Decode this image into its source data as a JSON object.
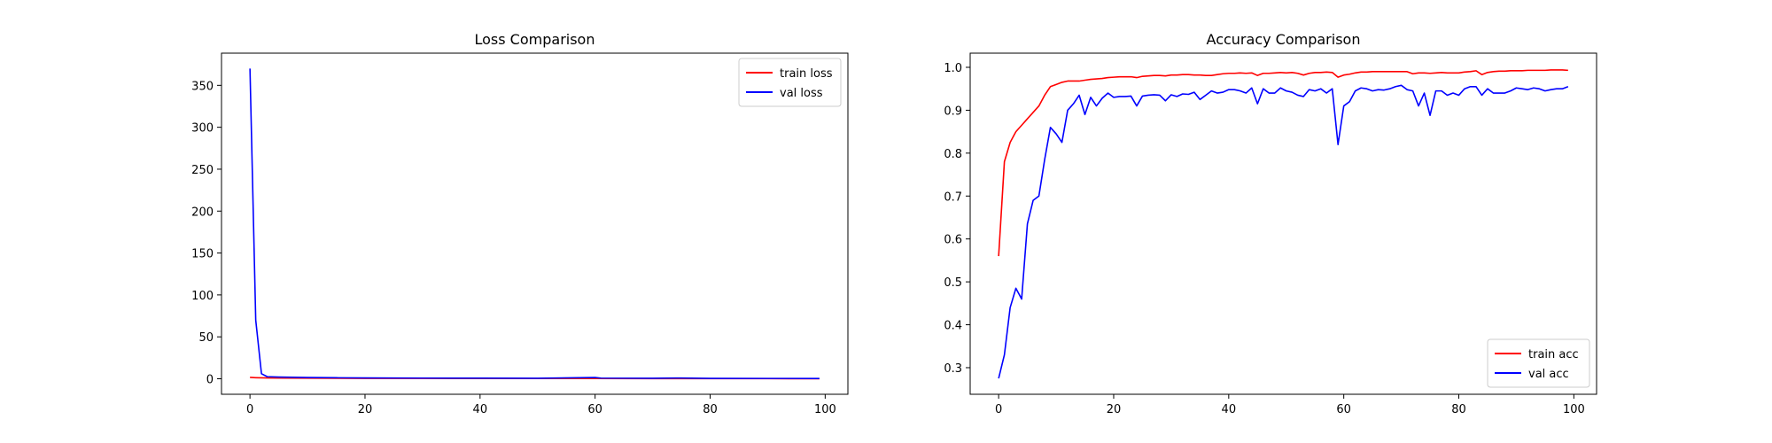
{
  "chart_data": [
    {
      "type": "line",
      "title": "Loss Comparison",
      "xlabel": "",
      "ylabel": "",
      "xlim": [
        -4.95,
        103.95
      ],
      "ylim": [
        -18.5,
        388.4
      ],
      "xticks": [
        0,
        20,
        40,
        60,
        80,
        100
      ],
      "yticks": [
        0,
        50,
        100,
        150,
        200,
        250,
        300,
        350
      ],
      "grid": false,
      "legend_position": "top-right",
      "series": [
        {
          "name": "train loss",
          "color": "#ff0000",
          "x": [
            0,
            1,
            2,
            3,
            5,
            10,
            20,
            30,
            40,
            50,
            60,
            70,
            80,
            90,
            99
          ],
          "y": [
            1.6,
            1.3,
            1.1,
            1.0,
            0.9,
            0.7,
            0.5,
            0.4,
            0.3,
            0.25,
            0.25,
            0.2,
            0.15,
            0.12,
            0.1
          ]
        },
        {
          "name": "val loss",
          "color": "#0000ff",
          "x": [
            0,
            1,
            2,
            3,
            5,
            10,
            15,
            20,
            30,
            40,
            50,
            60,
            61,
            70,
            75,
            80,
            90,
            99
          ],
          "y": [
            370,
            70,
            6,
            2.5,
            2.0,
            1.5,
            1.2,
            1.0,
            0.8,
            0.7,
            0.6,
            1.5,
            0.8,
            0.6,
            0.9,
            0.5,
            0.4,
            0.35
          ]
        }
      ]
    },
    {
      "type": "line",
      "title": "Accuracy Comparison",
      "xlabel": "",
      "ylabel": "",
      "xlim": [
        -4.95,
        103.95
      ],
      "ylim": [
        0.238,
        1.033
      ],
      "xticks": [
        0,
        20,
        40,
        60,
        80,
        100
      ],
      "yticks": [
        0.3,
        0.4,
        0.5,
        0.6,
        0.7,
        0.8,
        0.9,
        1.0
      ],
      "grid": false,
      "legend_position": "lower-right",
      "series": [
        {
          "name": "train acc",
          "color": "#ff0000",
          "x": [
            0,
            1,
            2,
            3,
            4,
            5,
            6,
            7,
            8,
            9,
            10,
            11,
            12,
            13,
            14,
            15,
            16,
            17,
            18,
            19,
            20,
            21,
            22,
            23,
            24,
            25,
            26,
            27,
            28,
            29,
            30,
            31,
            32,
            33,
            34,
            35,
            36,
            37,
            38,
            39,
            40,
            41,
            42,
            43,
            44,
            45,
            46,
            47,
            48,
            49,
            50,
            51,
            52,
            53,
            54,
            55,
            56,
            57,
            58,
            59,
            60,
            61,
            62,
            63,
            64,
            65,
            66,
            67,
            68,
            69,
            70,
            71,
            72,
            73,
            74,
            75,
            76,
            77,
            78,
            79,
            80,
            81,
            82,
            83,
            84,
            85,
            86,
            87,
            88,
            89,
            90,
            91,
            92,
            93,
            94,
            95,
            96,
            97,
            98,
            99
          ],
          "y": [
            0.56,
            0.78,
            0.825,
            0.85,
            0.865,
            0.88,
            0.895,
            0.91,
            0.935,
            0.955,
            0.96,
            0.965,
            0.968,
            0.968,
            0.968,
            0.97,
            0.972,
            0.973,
            0.974,
            0.976,
            0.977,
            0.978,
            0.978,
            0.978,
            0.976,
            0.979,
            0.98,
            0.981,
            0.981,
            0.98,
            0.982,
            0.982,
            0.983,
            0.983,
            0.982,
            0.982,
            0.981,
            0.981,
            0.983,
            0.985,
            0.986,
            0.986,
            0.987,
            0.986,
            0.987,
            0.981,
            0.986,
            0.986,
            0.987,
            0.988,
            0.987,
            0.988,
            0.986,
            0.982,
            0.986,
            0.988,
            0.988,
            0.989,
            0.988,
            0.977,
            0.982,
            0.984,
            0.987,
            0.989,
            0.989,
            0.99,
            0.99,
            0.99,
            0.99,
            0.99,
            0.99,
            0.99,
            0.985,
            0.987,
            0.987,
            0.986,
            0.987,
            0.988,
            0.987,
            0.987,
            0.987,
            0.989,
            0.99,
            0.992,
            0.983,
            0.988,
            0.99,
            0.991,
            0.991,
            0.992,
            0.992,
            0.992,
            0.993,
            0.993,
            0.993,
            0.993,
            0.994,
            0.994,
            0.994,
            0.993
          ]
        },
        {
          "name": "val acc",
          "color": "#0000ff",
          "x": [
            0,
            1,
            2,
            3,
            4,
            5,
            6,
            7,
            8,
            9,
            10,
            11,
            12,
            13,
            14,
            15,
            16,
            17,
            18,
            19,
            20,
            21,
            22,
            23,
            24,
            25,
            26,
            27,
            28,
            29,
            30,
            31,
            32,
            33,
            34,
            35,
            36,
            37,
            38,
            39,
            40,
            41,
            42,
            43,
            44,
            45,
            46,
            47,
            48,
            49,
            50,
            51,
            52,
            53,
            54,
            55,
            56,
            57,
            58,
            59,
            60,
            61,
            62,
            63,
            64,
            65,
            66,
            67,
            68,
            69,
            70,
            71,
            72,
            73,
            74,
            75,
            76,
            77,
            78,
            79,
            80,
            81,
            82,
            83,
            84,
            85,
            86,
            87,
            88,
            89,
            90,
            91,
            92,
            93,
            94,
            95,
            96,
            97,
            98,
            99
          ],
          "y": [
            0.275,
            0.33,
            0.44,
            0.485,
            0.46,
            0.635,
            0.69,
            0.7,
            0.785,
            0.86,
            0.845,
            0.825,
            0.9,
            0.915,
            0.935,
            0.89,
            0.93,
            0.91,
            0.928,
            0.94,
            0.93,
            0.932,
            0.932,
            0.933,
            0.91,
            0.933,
            0.935,
            0.936,
            0.935,
            0.922,
            0.936,
            0.932,
            0.938,
            0.937,
            0.942,
            0.925,
            0.935,
            0.945,
            0.94,
            0.942,
            0.948,
            0.948,
            0.945,
            0.94,
            0.952,
            0.915,
            0.95,
            0.94,
            0.94,
            0.952,
            0.945,
            0.942,
            0.935,
            0.932,
            0.948,
            0.945,
            0.95,
            0.94,
            0.95,
            0.82,
            0.91,
            0.92,
            0.945,
            0.952,
            0.95,
            0.945,
            0.948,
            0.947,
            0.95,
            0.955,
            0.958,
            0.948,
            0.945,
            0.91,
            0.94,
            0.888,
            0.945,
            0.945,
            0.935,
            0.94,
            0.935,
            0.95,
            0.955,
            0.955,
            0.935,
            0.95,
            0.94,
            0.94,
            0.94,
            0.945,
            0.952,
            0.95,
            0.948,
            0.952,
            0.95,
            0.945,
            0.948,
            0.95,
            0.95,
            0.955
          ]
        }
      ]
    }
  ]
}
